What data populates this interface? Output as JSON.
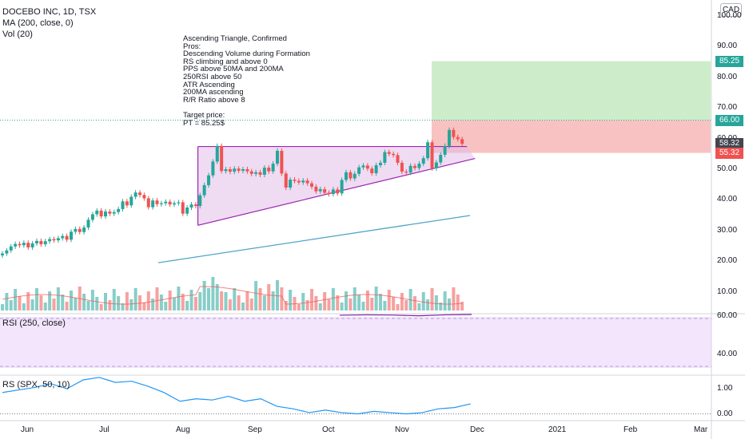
{
  "header": {
    "symbol": "DOCEBO INC, 1D, TSX",
    "ma_label": "MA (200, close, 0)",
    "vol_label": "Vol (20)",
    "currency": "CAD"
  },
  "notes": "Ascending Triangle, Confirmed\nPros:\nDescending Volume during Formation\nRS climbing and above 0\nPPS above 50MA and 200MA\n250RSI above 50\nATR Ascending\n200MA ascending\nR/R Ratio above 8\n\nTarget price:\nPT = 85.25$",
  "price_axis": [
    "100.00",
    "90.00",
    "80.00",
    "70.00",
    "60.00",
    "50.00",
    "40.00",
    "30.00",
    "20.00",
    "10.00"
  ],
  "price_tags": [
    {
      "label": "85.25",
      "color": "#26a69a"
    },
    {
      "label": "66.00",
      "color": "#26a69a"
    },
    {
      "label": "58.32",
      "color": "#434651"
    },
    {
      "label": "55.32",
      "color": "#ef5350"
    }
  ],
  "rsi_panel": {
    "label": "RSI (250, close)",
    "axis": [
      "60.00",
      "40.00"
    ]
  },
  "rs_panel": {
    "label": "RS (SPX, 50, 10)",
    "axis": [
      "1.00",
      "0.00"
    ]
  },
  "x_axis": [
    "Jun",
    "Jul",
    "Aug",
    "Sep",
    "Oct",
    "Nov",
    "Dec",
    "2021",
    "Feb",
    "Mar"
  ],
  "colors": {
    "up": "#26a69a",
    "down": "#ef5350",
    "ma": "#4fa3c7",
    "rsi_line": "#7b1fa2",
    "rs_line": "#2196f3",
    "triangle": "#9c27b0"
  },
  "chart_data": {
    "type": "candlestick",
    "price_ylim": [
      0,
      100
    ],
    "start_date": "2020-05-25",
    "closes": [
      22.5,
      23.5,
      24.8,
      25.6,
      25.2,
      26.0,
      24.5,
      25.8,
      26.6,
      25.5,
      26.5,
      27.2,
      26.8,
      27.5,
      28.2,
      27.0,
      29.6,
      30.5,
      29.5,
      31.0,
      33.5,
      35.3,
      36.5,
      34.6,
      36.2,
      35.5,
      36.0,
      37.0,
      39.5,
      38.2,
      41.0,
      42.4,
      41.6,
      40.5,
      37.6,
      39.8,
      38.6,
      38.9,
      39.4,
      38.5,
      38.9,
      39.2,
      35.5,
      37.5,
      38.5,
      38.0,
      41.5,
      44.8,
      48.0,
      52.5,
      57.6,
      49.4,
      50.0,
      49.2,
      50.2,
      49.5,
      50.0,
      49.3,
      48.5,
      49.0,
      48.2,
      50.5,
      49.3,
      51.8,
      56.0,
      48.6,
      44.0,
      46.6,
      46.2,
      45.7,
      46.3,
      45.4,
      44.3,
      42.8,
      43.5,
      42.3,
      41.9,
      43.4,
      42.1,
      46.5,
      49.0,
      47.0,
      48.5,
      50.6,
      51.2,
      50.2,
      48.7,
      51.3,
      52.1,
      55.6,
      55.0,
      54.6,
      52.1,
      49.2,
      48.9,
      51.1,
      50.4,
      51.8,
      53.6,
      58.8,
      50.3,
      52.2,
      54.7,
      57.6,
      62.8,
      60.5,
      59.8,
      58.3
    ],
    "ma200": [
      19.5,
      34.9
    ],
    "triangle": {
      "top": 57.4,
      "bottom_start": 31.7,
      "bottom_end": 53.5
    },
    "stop": 55.32,
    "entry": 66.0,
    "target": 85.25,
    "rsi_ylim": [
      30,
      70
    ],
    "rsi": [
      60.4,
      60.6,
      60.5,
      60.1,
      60.6,
      60.8
    ],
    "rs_ylim": [
      -0.1,
      1.5
    ],
    "rs": [
      0.85,
      0.95,
      1.05,
      1.2,
      1.0,
      1.35,
      1.45,
      1.25,
      1.3,
      1.1,
      0.85,
      0.5,
      0.6,
      0.55,
      0.7,
      0.5,
      0.6,
      0.3,
      0.2,
      0.05,
      0.15,
      0.05,
      0.0,
      0.1,
      0.05,
      0.0,
      0.05,
      0.2,
      0.25,
      0.4
    ]
  }
}
